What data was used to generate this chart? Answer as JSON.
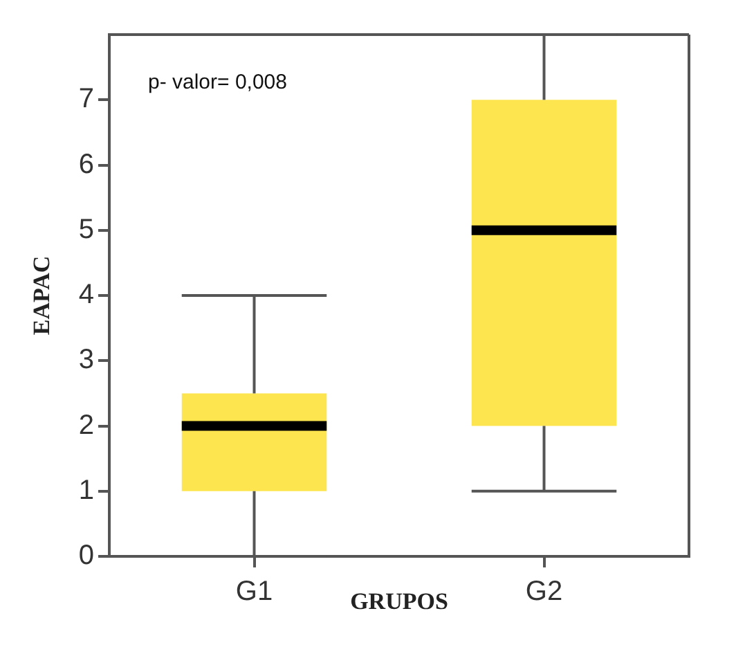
{
  "chart_data": {
    "type": "box",
    "xlabel": "GRUPOS",
    "ylabel": "EAPAC",
    "annotations": [
      "p- valor= 0,008"
    ],
    "categories": [
      "G1",
      "G2"
    ],
    "color": "#fce54e",
    "boxes": [
      {
        "low": 0,
        "q1": 1,
        "median": 2,
        "q3": 2.5,
        "high": 4
      },
      {
        "low": 1,
        "q1": 2,
        "median": 5,
        "q3": 7,
        "high": 8
      }
    ],
    "ylim": [
      0,
      8
    ],
    "yticks": [
      0,
      1,
      2,
      3,
      4,
      5,
      6,
      7
    ]
  }
}
